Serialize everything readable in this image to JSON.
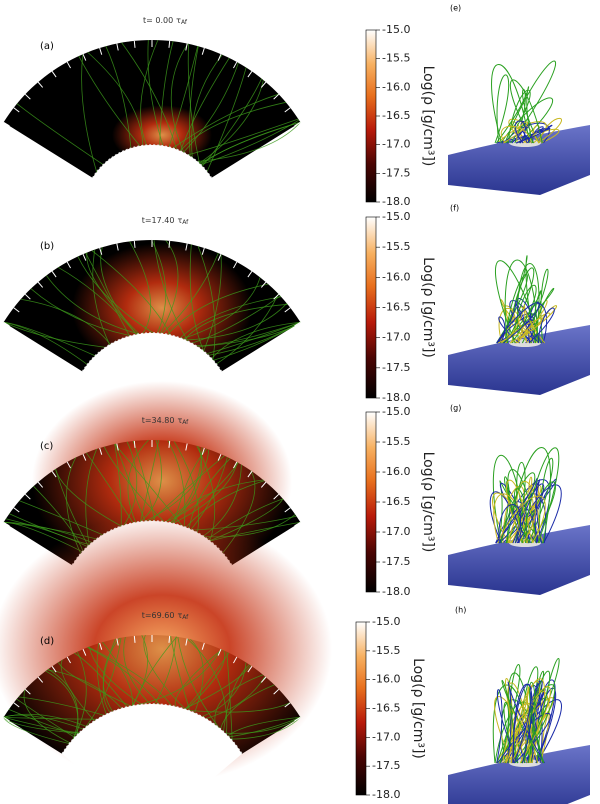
{
  "panels": [
    {
      "label": "(a)",
      "time": "t= 0.00",
      "side_label": "(e)"
    },
    {
      "label": "(b)",
      "time": "t=17.40",
      "side_label": "(f)"
    },
    {
      "label": "(c)",
      "time": "t=34.80",
      "side_label": "(g)"
    },
    {
      "label": "(d)",
      "time": "t=69.60",
      "side_label": "(h)"
    }
  ],
  "time_unit": "τ",
  "time_unit_sub": "Af",
  "colorbar": {
    "label": "Log(ρ [g/cm³])",
    "lim": [
      -18,
      -15
    ],
    "ticks": [
      {
        "value": -15,
        "label": "-15.0"
      },
      {
        "value": -15.5,
        "label": "-15.5"
      },
      {
        "value": -16,
        "label": "-16.0"
      },
      {
        "value": -16.5,
        "label": "-16.5"
      },
      {
        "value": -17,
        "label": "-17.0"
      },
      {
        "value": -17.5,
        "label": "-17.5"
      },
      {
        "value": -18,
        "label": "-18.0"
      }
    ]
  }
}
